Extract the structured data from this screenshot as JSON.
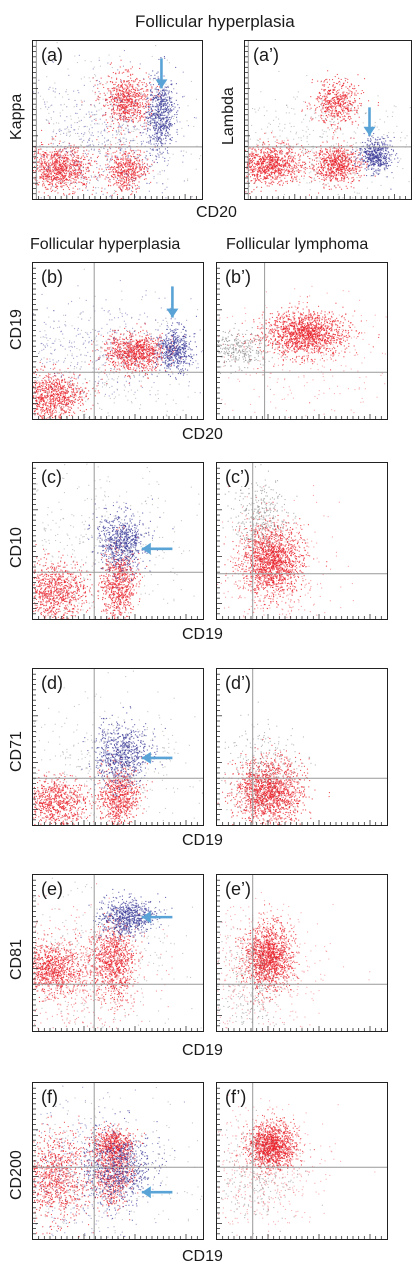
{
  "header": {
    "title_top": "Follicular hyperplasia",
    "col_left": "Follicular hyperplasia",
    "col_right": "Follicular lymphoma"
  },
  "axes": {
    "a_y": "Kappa",
    "a2_y": "Lambda",
    "row_a_x": "CD20",
    "b_y": "CD19",
    "b_x": "CD20",
    "c_y": "CD10",
    "c_x": "CD19",
    "d_y": "CD71",
    "d_x": "CD19",
    "e_y": "CD81",
    "e_x": "CD19",
    "f_y": "CD200",
    "f_x": "CD19"
  },
  "panels": {
    "a": "(a)",
    "a2": "(a’)",
    "b": "(b)",
    "b2": "(b’)",
    "c": "(c)",
    "c2": "(c’)",
    "d": "(d)",
    "d2": "(d’)",
    "e": "(e)",
    "e2": "(e’)",
    "f": "(f)",
    "f2": "(f’)"
  },
  "colors": {
    "red": "#e8202a",
    "blue": "#3b3b9a",
    "gray": "#777777",
    "arrow": "#5aa3d6",
    "gate": "#999999"
  }
}
